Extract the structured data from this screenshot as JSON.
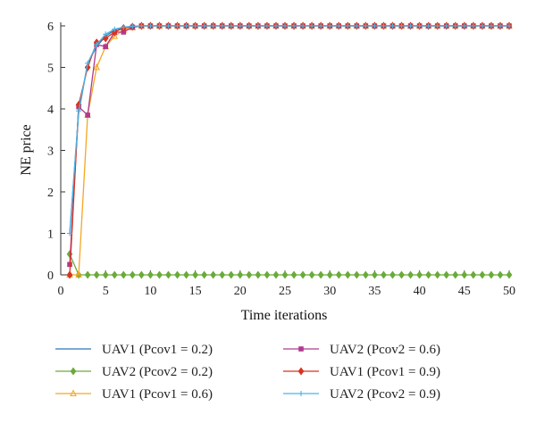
{
  "chart_data": {
    "type": "line",
    "title": "",
    "xlabel": "Time iterations",
    "ylabel": "NE price",
    "xlim": [
      0,
      50
    ],
    "ylim": [
      0,
      6
    ],
    "xticks": [
      0,
      5,
      10,
      15,
      20,
      25,
      30,
      35,
      40,
      45,
      50
    ],
    "yticks": [
      0,
      1,
      2,
      3,
      4,
      5,
      6
    ],
    "grid": false,
    "legend_position": "bottom",
    "x": [
      1,
      2,
      3,
      4,
      5,
      6,
      7,
      8,
      9,
      10,
      11,
      12,
      13,
      14,
      15,
      16,
      17,
      18,
      19,
      20,
      21,
      22,
      23,
      24,
      25,
      26,
      27,
      28,
      29,
      30,
      31,
      32,
      33,
      34,
      35,
      36,
      37,
      38,
      39,
      40,
      41,
      42,
      43,
      44,
      45,
      46,
      47,
      48,
      49,
      50
    ],
    "series": [
      {
        "name": "UAV1 (Pcov1 = 0.2)",
        "color": "#2e75b6",
        "marker": "none",
        "values": [
          1.0,
          3.9,
          5.1,
          5.5,
          5.75,
          5.9,
          5.96,
          5.98,
          6,
          6,
          6,
          6,
          6,
          6,
          6,
          6,
          6,
          6,
          6,
          6,
          6,
          6,
          6,
          6,
          6,
          6,
          6,
          6,
          6,
          6,
          6,
          6,
          6,
          6,
          6,
          6,
          6,
          6,
          6,
          6,
          6,
          6,
          6,
          6,
          6,
          6,
          6,
          6,
          6,
          6
        ]
      },
      {
        "name": "UAV2 (Pcov2 = 0.2)",
        "color": "#6aaa3a",
        "marker": "diamond",
        "values": [
          0.5,
          0,
          0,
          0,
          0,
          0,
          0,
          0,
          0,
          0,
          0,
          0,
          0,
          0,
          0,
          0,
          0,
          0,
          0,
          0,
          0,
          0,
          0,
          0,
          0,
          0,
          0,
          0,
          0,
          0,
          0,
          0,
          0,
          0,
          0,
          0,
          0,
          0,
          0,
          0,
          0,
          0,
          0,
          0,
          0,
          0,
          0,
          0,
          0,
          0
        ]
      },
      {
        "name": "UAV1 (Pcov1 = 0.6)",
        "color": "#f5a623",
        "marker": "triangle",
        "values": [
          0,
          0,
          3.85,
          5.0,
          5.5,
          5.75,
          5.9,
          5.96,
          6,
          6,
          6,
          6,
          6,
          6,
          6,
          6,
          6,
          6,
          6,
          6,
          6,
          6,
          6,
          6,
          6,
          6,
          6,
          6,
          6,
          6,
          6,
          6,
          6,
          6,
          6,
          6,
          6,
          6,
          6,
          6,
          6,
          6,
          6,
          6,
          6,
          6,
          6,
          6,
          6,
          6
        ]
      },
      {
        "name": "UAV2 (Pcov2 = 0.6)",
        "color": "#b03a8c",
        "marker": "square",
        "values": [
          0.25,
          4.05,
          3.85,
          5.55,
          5.5,
          5.85,
          5.85,
          5.97,
          6,
          6,
          6,
          6,
          6,
          6,
          6,
          6,
          6,
          6,
          6,
          6,
          6,
          6,
          6,
          6,
          6,
          6,
          6,
          6,
          6,
          6,
          6,
          6,
          6,
          6,
          6,
          6,
          6,
          6,
          6,
          6,
          6,
          6,
          6,
          6,
          6,
          6,
          6,
          6,
          6,
          6
        ]
      },
      {
        "name": "UAV1 (Pcov1 = 0.9)",
        "color": "#d8331f",
        "marker": "diamond",
        "values": [
          0,
          4.1,
          5.0,
          5.6,
          5.7,
          5.85,
          5.95,
          5.98,
          6,
          6,
          6,
          6,
          6,
          6,
          6,
          6,
          6,
          6,
          6,
          6,
          6,
          6,
          6,
          6,
          6,
          6,
          6,
          6,
          6,
          6,
          6,
          6,
          6,
          6,
          6,
          6,
          6,
          6,
          6,
          6,
          6,
          6,
          6,
          6,
          6,
          6,
          6,
          6,
          6,
          6
        ]
      },
      {
        "name": "UAV2 (Pcov2 = 0.9)",
        "color": "#4bb3e6",
        "marker": "plus",
        "values": [
          1.0,
          3.95,
          5.1,
          5.55,
          5.8,
          5.92,
          5.97,
          5.99,
          6,
          6,
          6,
          6,
          6,
          6,
          6,
          6,
          6,
          6,
          6,
          6,
          6,
          6,
          6,
          6,
          6,
          6,
          6,
          6,
          6,
          6,
          6,
          6,
          6,
          6,
          6,
          6,
          6,
          6,
          6,
          6,
          6,
          6,
          6,
          6,
          6,
          6,
          6,
          6,
          6,
          6
        ]
      }
    ]
  }
}
